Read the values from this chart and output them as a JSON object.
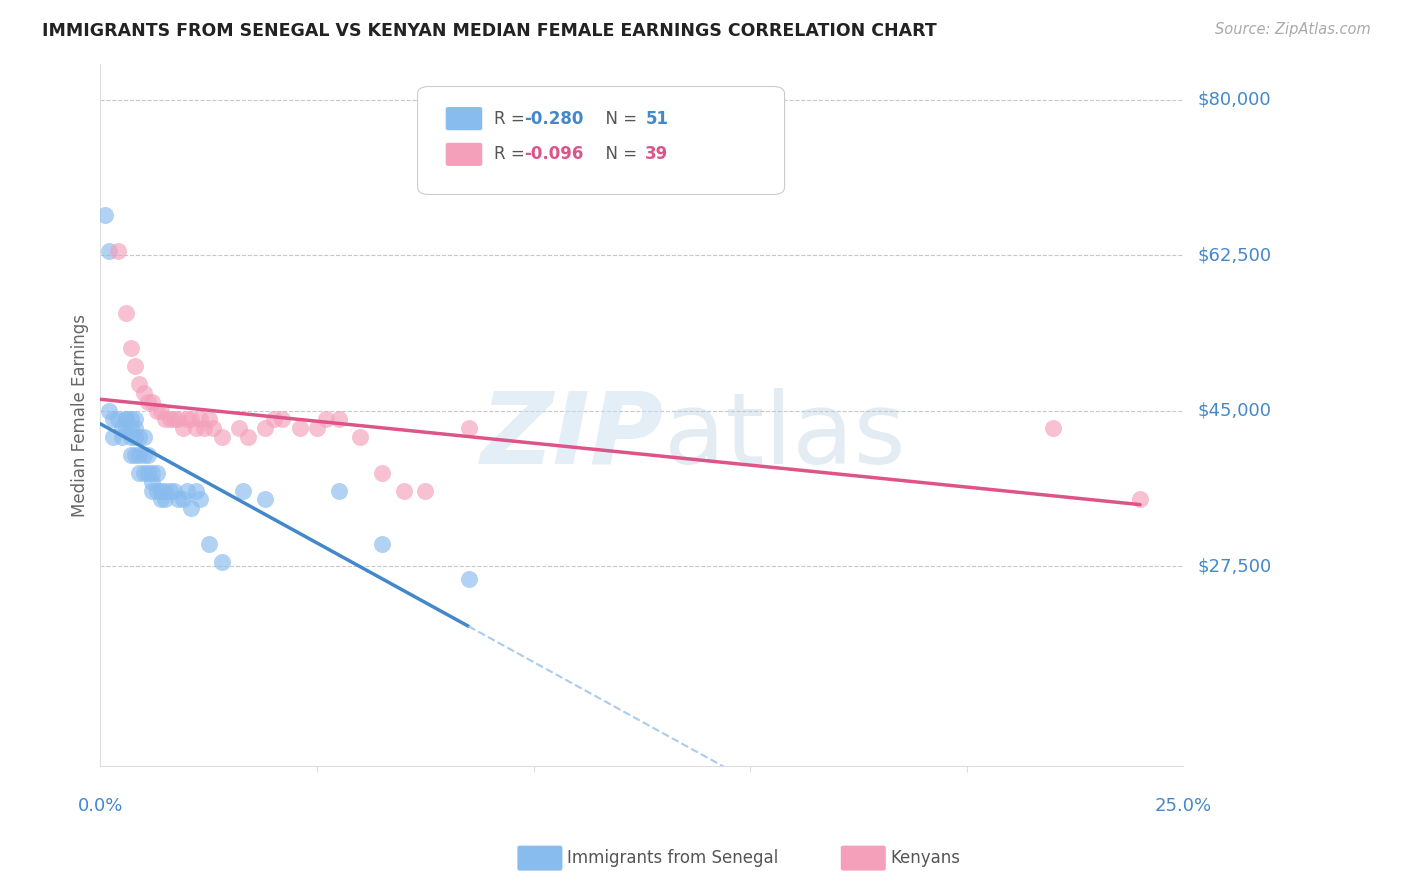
{
  "title": "IMMIGRANTS FROM SENEGAL VS KENYAN MEDIAN FEMALE EARNINGS CORRELATION CHART",
  "source": "Source: ZipAtlas.com",
  "ylabel": "Median Female Earnings",
  "ytick_values": [
    27500,
    45000,
    62500,
    80000
  ],
  "ytick_labels": [
    "$27,500",
    "$45,000",
    "$62,500",
    "$80,000"
  ],
  "xlim": [
    0.0,
    0.25
  ],
  "ylim": [
    5000,
    84000
  ],
  "bg_color": "#ffffff",
  "grid_color": "#c8c8c8",
  "blue_color": "#88bbee",
  "pink_color": "#f4a0bb",
  "blue_line_color": "#4488cc",
  "pink_line_color": "#dd5588",
  "blue_dash_color": "#aaccee",
  "title_color": "#222222",
  "source_color": "#aaaaaa",
  "axis_label_color": "#4488cc",
  "ylabel_color": "#666666",
  "senegal_x": [
    0.001,
    0.002,
    0.002,
    0.003,
    0.003,
    0.004,
    0.005,
    0.005,
    0.006,
    0.006,
    0.006,
    0.007,
    0.007,
    0.007,
    0.007,
    0.008,
    0.008,
    0.008,
    0.008,
    0.009,
    0.009,
    0.009,
    0.01,
    0.01,
    0.01,
    0.011,
    0.011,
    0.012,
    0.012,
    0.012,
    0.013,
    0.013,
    0.014,
    0.014,
    0.015,
    0.015,
    0.016,
    0.017,
    0.018,
    0.019,
    0.02,
    0.021,
    0.022,
    0.023,
    0.025,
    0.028,
    0.033,
    0.038,
    0.055,
    0.065,
    0.085
  ],
  "senegal_y": [
    67000,
    63000,
    45000,
    42000,
    44000,
    44000,
    43000,
    42000,
    44000,
    44000,
    43000,
    44000,
    43000,
    42000,
    40000,
    44000,
    43000,
    42000,
    40000,
    42000,
    40000,
    38000,
    40000,
    42000,
    38000,
    40000,
    38000,
    38000,
    37000,
    36000,
    38000,
    36000,
    36000,
    35000,
    36000,
    35000,
    36000,
    36000,
    35000,
    35000,
    36000,
    34000,
    36000,
    35000,
    30000,
    28000,
    36000,
    35000,
    36000,
    30000,
    26000
  ],
  "kenyan_x": [
    0.004,
    0.006,
    0.007,
    0.008,
    0.009,
    0.01,
    0.011,
    0.012,
    0.013,
    0.014,
    0.015,
    0.016,
    0.017,
    0.018,
    0.019,
    0.02,
    0.021,
    0.022,
    0.023,
    0.024,
    0.025,
    0.026,
    0.028,
    0.032,
    0.034,
    0.038,
    0.04,
    0.042,
    0.046,
    0.05,
    0.052,
    0.055,
    0.06,
    0.065,
    0.07,
    0.075,
    0.085,
    0.22,
    0.24
  ],
  "kenyan_y": [
    63000,
    56000,
    52000,
    50000,
    48000,
    47000,
    46000,
    46000,
    45000,
    45000,
    44000,
    44000,
    44000,
    44000,
    43000,
    44000,
    44000,
    43000,
    44000,
    43000,
    44000,
    43000,
    42000,
    43000,
    42000,
    43000,
    44000,
    44000,
    43000,
    43000,
    44000,
    44000,
    42000,
    38000,
    36000,
    36000,
    43000,
    43000,
    35000
  ],
  "legend_r1": "-0.280",
  "legend_n1": "51",
  "legend_r2": "-0.096",
  "legend_n2": "39"
}
